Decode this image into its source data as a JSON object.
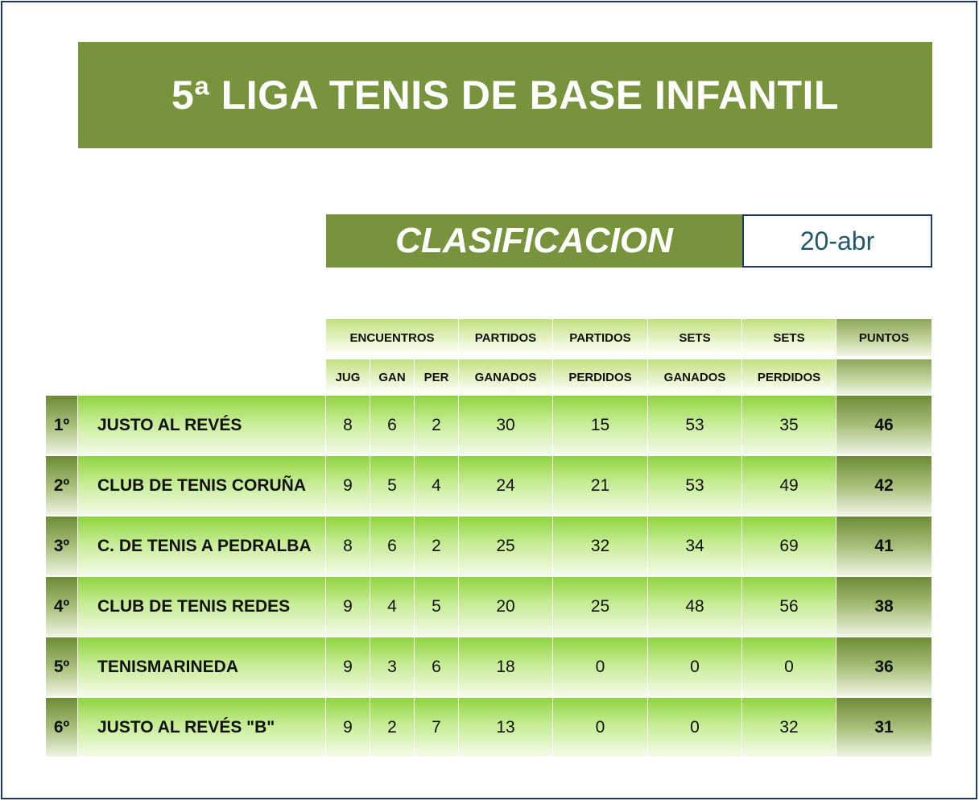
{
  "title": "5ª LIGA TENIS DE BASE INFANTIL",
  "subtitle": "CLASIFICACION",
  "date": "20-abr",
  "table": {
    "group_headers": {
      "encuentros": "ENCUENTROS",
      "partidos_ganados": "PARTIDOS",
      "partidos_perdidos": "PARTIDOS",
      "sets_ganados": "SETS",
      "sets_perdidos": "SETS",
      "puntos": "PUNTOS"
    },
    "sub_headers": {
      "jug": "JUG",
      "gan": "GAN",
      "per": "PER",
      "partidos_ganados": "GANADOS",
      "partidos_perdidos": "PERDIDOS",
      "sets_ganados": "GANADOS",
      "sets_perdidos": "PERDIDOS"
    },
    "rows": [
      {
        "rank": "1º",
        "team": "JUSTO AL REVÉS",
        "jug": "8",
        "gan": "6",
        "per": "2",
        "pg": "30",
        "pp": "15",
        "sg": "53",
        "sp": "35",
        "pts": "46"
      },
      {
        "rank": "2º",
        "team": "CLUB DE TENIS CORUÑA",
        "jug": "9",
        "gan": "5",
        "per": "4",
        "pg": "24",
        "pp": "21",
        "sg": "53",
        "sp": "49",
        "pts": "42"
      },
      {
        "rank": "3º",
        "team": "C. DE TENIS A PEDRALBA",
        "jug": "8",
        "gan": "6",
        "per": "2",
        "pg": "25",
        "pp": "32",
        "sg": "34",
        "sp": "69",
        "pts": "41"
      },
      {
        "rank": "4º",
        "team": "CLUB DE TENIS REDES",
        "jug": "9",
        "gan": "4",
        "per": "5",
        "pg": "20",
        "pp": "25",
        "sg": "48",
        "sp": "56",
        "pts": "38"
      },
      {
        "rank": "5º",
        "team": "TENISMARINEDA",
        "jug": "9",
        "gan": "3",
        "per": "6",
        "pg": "18",
        "pp": "0",
        "sg": "0",
        "sp": "0",
        "pts": "36"
      },
      {
        "rank": "6º",
        "team": "JUSTO AL REVÉS \"B\"",
        "jug": "9",
        "gan": "2",
        "per": "7",
        "pg": "13",
        "pp": "0",
        "sg": "0",
        "sp": "32",
        "pts": "31"
      }
    ]
  },
  "colors": {
    "banner": "#77933c",
    "border": "#1f3864",
    "date_text": "#215868"
  }
}
